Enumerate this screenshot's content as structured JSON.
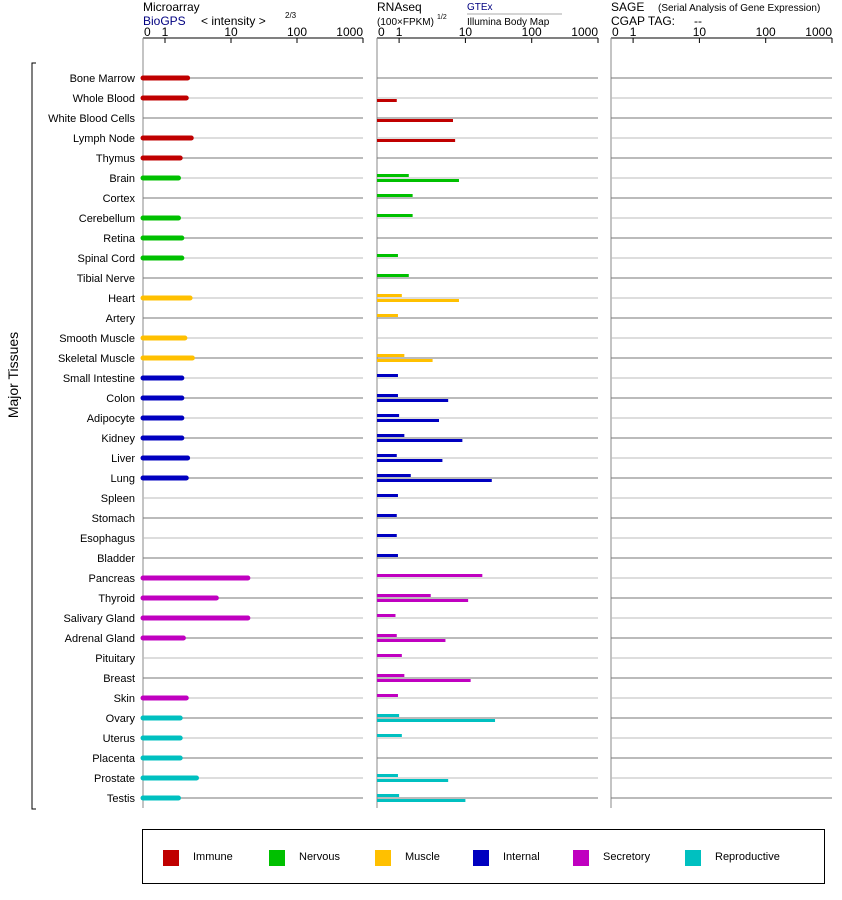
{
  "chart_data": {
    "type": "bar",
    "panels": {
      "microarray": {
        "title": "Microarray",
        "source_label": "BioGPS",
        "metric_label": "< intensity >",
        "metric_exponent": "2/3",
        "axis_ticks": [
          "0",
          "1",
          "10",
          "100",
          "1000"
        ]
      },
      "rnaseq": {
        "title": "RNAseq",
        "unit_label": "(100×FPKM)",
        "unit_exponent": "1/2",
        "source_gtex": "GTEx",
        "source_ibm": "Illumina Body Map",
        "axis_ticks": [
          "0",
          "1",
          "10",
          "100",
          "1000"
        ]
      },
      "sage": {
        "title": "SAGE",
        "subtitle": "(Serial Analysis of Gene Expression)",
        "cgap_label": "CGAP TAG:",
        "cgap_value": "--",
        "axis_ticks": [
          "0",
          "1",
          "10",
          "100",
          "1000"
        ]
      }
    },
    "ylabel": "Major Tissues",
    "groups": [
      {
        "name": "Immune",
        "color": "#c00000"
      },
      {
        "name": "Nervous",
        "color": "#00c000"
      },
      {
        "name": "Muscle",
        "color": "#ffc000"
      },
      {
        "name": "Internal",
        "color": "#0000c0"
      },
      {
        "name": "Secretory",
        "color": "#c000c0"
      },
      {
        "name": "Reproductive",
        "color": "#00c0c0"
      }
    ],
    "tissues": [
      {
        "name": "Bone Marrow",
        "group": "Immune",
        "microarray": 2.2,
        "gtex": null,
        "ibm": null
      },
      {
        "name": "Whole Blood",
        "group": "Immune",
        "microarray": 2.1,
        "gtex": null,
        "ibm": 0.8
      },
      {
        "name": "White Blood Cells",
        "group": "Immune",
        "microarray": null,
        "gtex": null,
        "ibm": 6.5
      },
      {
        "name": "Lymph Node",
        "group": "Immune",
        "microarray": 2.5,
        "gtex": null,
        "ibm": 7.0
      },
      {
        "name": "Thymus",
        "group": "Immune",
        "microarray": 1.7,
        "gtex": null,
        "ibm": null
      },
      {
        "name": "Brain",
        "group": "Nervous",
        "microarray": 1.6,
        "gtex": 1.4,
        "ibm": 8.0
      },
      {
        "name": "Cortex",
        "group": "Nervous",
        "microarray": null,
        "gtex": 1.6,
        "ibm": null
      },
      {
        "name": "Cerebellum",
        "group": "Nervous",
        "microarray": 1.6,
        "gtex": 1.6,
        "ibm": null
      },
      {
        "name": "Retina",
        "group": "Nervous",
        "microarray": 1.8,
        "gtex": null,
        "ibm": null
      },
      {
        "name": "Spinal Cord",
        "group": "Nervous",
        "microarray": 1.8,
        "gtex": 0.9,
        "ibm": null
      },
      {
        "name": "Tibial Nerve",
        "group": "Nervous",
        "microarray": null,
        "gtex": 1.4,
        "ibm": null
      },
      {
        "name": "Heart",
        "group": "Muscle",
        "microarray": 2.4,
        "gtex": 1.1,
        "ibm": 8.0
      },
      {
        "name": "Artery",
        "group": "Muscle",
        "microarray": null,
        "gtex": 0.9,
        "ibm": null
      },
      {
        "name": "Smooth Muscle",
        "group": "Muscle",
        "microarray": 2.0,
        "gtex": null,
        "ibm": null
      },
      {
        "name": "Skeletal Muscle",
        "group": "Muscle",
        "microarray": 2.6,
        "gtex": 1.2,
        "ibm": 3.2
      },
      {
        "name": "Small Intestine",
        "group": "Internal",
        "microarray": 1.8,
        "gtex": 0.9,
        "ibm": null
      },
      {
        "name": "Colon",
        "group": "Internal",
        "microarray": 1.8,
        "gtex": 0.9,
        "ibm": 5.5
      },
      {
        "name": "Adipocyte",
        "group": "Internal",
        "microarray": 1.8,
        "gtex": 1.0,
        "ibm": 4.0
      },
      {
        "name": "Kidney",
        "group": "Internal",
        "microarray": 1.8,
        "gtex": 1.2,
        "ibm": 9.0
      },
      {
        "name": "Liver",
        "group": "Internal",
        "microarray": 2.2,
        "gtex": 0.8,
        "ibm": 4.5
      },
      {
        "name": "Lung",
        "group": "Internal",
        "microarray": 2.1,
        "gtex": 1.5,
        "ibm": 25.0
      },
      {
        "name": "Spleen",
        "group": "Internal",
        "microarray": null,
        "gtex": 0.9,
        "ibm": null
      },
      {
        "name": "Stomach",
        "group": "Internal",
        "microarray": null,
        "gtex": 0.8,
        "ibm": null
      },
      {
        "name": "Esophagus",
        "group": "Internal",
        "microarray": null,
        "gtex": 0.8,
        "ibm": null
      },
      {
        "name": "Bladder",
        "group": "Internal",
        "microarray": null,
        "gtex": 0.9,
        "ibm": null
      },
      {
        "name": "Pancreas",
        "group": "Secretory",
        "microarray": 18.0,
        "gtex": 18.0,
        "ibm": null
      },
      {
        "name": "Thyroid",
        "group": "Secretory",
        "microarray": 6.0,
        "gtex": 3.0,
        "ibm": 11.0
      },
      {
        "name": "Salivary Gland",
        "group": "Secretory",
        "microarray": 18.0,
        "gtex": 0.7,
        "ibm": null
      },
      {
        "name": "Adrenal Gland",
        "group": "Secretory",
        "microarray": 1.9,
        "gtex": 0.8,
        "ibm": 5.0
      },
      {
        "name": "Pituitary",
        "group": "Secretory",
        "microarray": null,
        "gtex": 1.1,
        "ibm": null
      },
      {
        "name": "Breast",
        "group": "Secretory",
        "microarray": null,
        "gtex": 1.2,
        "ibm": 12.0
      },
      {
        "name": "Skin",
        "group": "Secretory",
        "microarray": 2.1,
        "gtex": 0.9,
        "ibm": null
      },
      {
        "name": "Ovary",
        "group": "Reproductive",
        "microarray": 1.7,
        "gtex": 1.0,
        "ibm": 28.0
      },
      {
        "name": "Uterus",
        "group": "Reproductive",
        "microarray": 1.7,
        "gtex": 1.1,
        "ibm": null
      },
      {
        "name": "Placenta",
        "group": "Reproductive",
        "microarray": 1.7,
        "gtex": null,
        "ibm": null
      },
      {
        "name": "Prostate",
        "group": "Reproductive",
        "microarray": 3.0,
        "gtex": 0.9,
        "ibm": 5.5
      },
      {
        "name": "Testis",
        "group": "Reproductive",
        "microarray": 1.6,
        "gtex": 1.0,
        "ibm": 10.0
      }
    ]
  }
}
